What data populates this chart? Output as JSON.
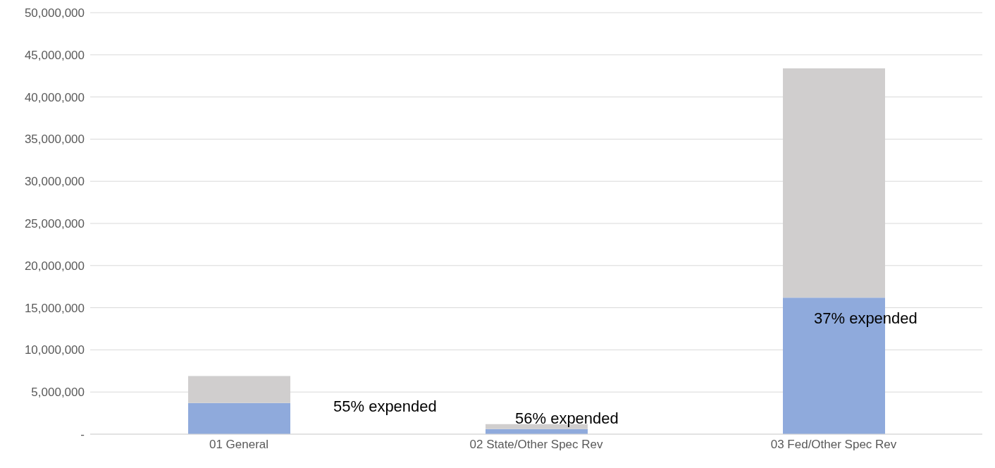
{
  "chart_data": {
    "type": "bar",
    "stacked": true,
    "categories": [
      "01 General",
      "02 State/Other Spec Rev",
      "03 Fed/Other Spec Rev"
    ],
    "series": [
      {
        "color": "#8faadc",
        "values": [
          3700000,
          600000,
          16200000
        ]
      },
      {
        "color": "#d0cece",
        "values": [
          3200000,
          600000,
          27200000
        ]
      }
    ],
    "ylim": [
      0,
      50000000
    ],
    "yticks": [
      {
        "value": 0,
        "label": "-"
      },
      {
        "value": 5000000,
        "label": "5,000,000"
      },
      {
        "value": 10000000,
        "label": "10,000,000"
      },
      {
        "value": 15000000,
        "label": "15,000,000"
      },
      {
        "value": 20000000,
        "label": "20,000,000"
      },
      {
        "value": 25000000,
        "label": "25,000,000"
      },
      {
        "value": 30000000,
        "label": "30,000,000"
      },
      {
        "value": 35000000,
        "label": "35,000,000"
      },
      {
        "value": 40000000,
        "label": "40,000,000"
      },
      {
        "value": 45000000,
        "label": "45,000,000"
      },
      {
        "value": 50000000,
        "label": "50,000,000"
      }
    ],
    "grid": "y",
    "legend": false,
    "annotations": [
      "55% expended",
      "56% expended",
      "37% expended"
    ]
  }
}
